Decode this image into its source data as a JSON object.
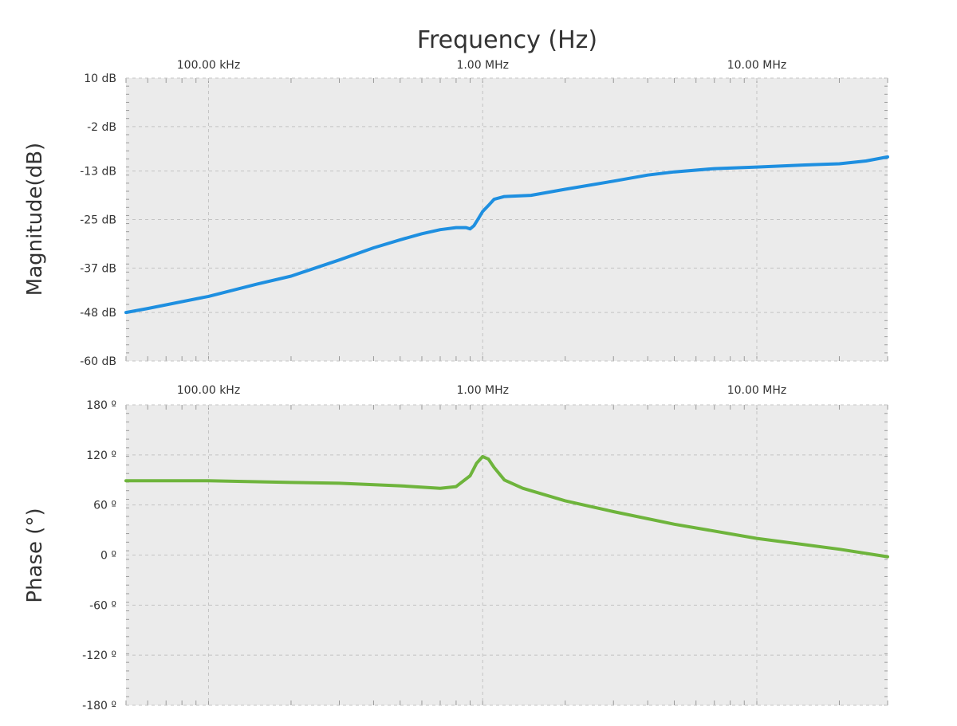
{
  "chart_data": [
    {
      "type": "line",
      "xlabel": "Frequency (Hz)",
      "ylabel": "Magnitude(dB)",
      "x_scale": "log",
      "xlim": [
        50000,
        30000000
      ],
      "ylim": [
        -60,
        10
      ],
      "x_ticks": [
        100000,
        1000000,
        10000000
      ],
      "x_tick_labels": [
        "100.00 kHz",
        "1.00 MHz",
        "10.00 MHz"
      ],
      "y_ticks": [
        10,
        -2,
        -13,
        -25,
        -37,
        -48,
        -60
      ],
      "y_tick_labels": [
        "10 dB",
        "-2 dB",
        "-13 dB",
        "-25 dB",
        "-37 dB",
        "-48 dB",
        "-60 dB"
      ],
      "grid": true,
      "colors": {
        "line": "#1e8fe0",
        "plot_bg": "#ebebeb",
        "grid": "#c4c4c4"
      },
      "series": [
        {
          "x": [
            50000,
            60000,
            100000,
            150000,
            200000,
            300000,
            400000,
            500000,
            600000,
            700000,
            800000,
            870000,
            900000,
            930000,
            960000,
            1000000,
            1050000,
            1100000,
            1200000,
            1500000,
            2000000,
            3000000,
            4000000,
            5000000,
            7000000,
            10000000,
            15000000,
            20000000,
            25000000,
            30000000
          ],
          "y": [
            -48,
            -47,
            -44,
            -41,
            -39,
            -35,
            -32,
            -30,
            -28.5,
            -27.5,
            -27,
            -27,
            -27.3,
            -26.5,
            -25,
            -23,
            -21.5,
            -20,
            -19.3,
            -19,
            -17.5,
            -15.5,
            -14,
            -13.2,
            -12.4,
            -12,
            -11.5,
            -11.2,
            -10.5,
            -9.5
          ]
        }
      ]
    },
    {
      "type": "line",
      "xlabel": "",
      "ylabel": "Phase (°)",
      "x_scale": "log",
      "xlim": [
        50000,
        30000000
      ],
      "ylim": [
        -180,
        180
      ],
      "x_ticks": [
        100000,
        1000000,
        10000000
      ],
      "x_tick_labels": [
        "100.00 kHz",
        "1.00 MHz",
        "10.00 MHz"
      ],
      "y_ticks": [
        180,
        120,
        60,
        0,
        -60,
        -120,
        -180
      ],
      "y_tick_labels": [
        "180 º",
        "120 º",
        "60 º",
        "0 º",
        "-60 º",
        "-120 º",
        "-180 º"
      ],
      "grid": true,
      "colors": {
        "line": "#6eb43c",
        "plot_bg": "#ebebeb",
        "grid": "#c4c4c4"
      },
      "series": [
        {
          "x": [
            50000,
            100000,
            200000,
            300000,
            500000,
            700000,
            800000,
            900000,
            950000,
            1000000,
            1050000,
            1100000,
            1200000,
            1400000,
            2000000,
            3000000,
            5000000,
            10000000,
            20000000,
            30000000
          ],
          "y": [
            89,
            89,
            87,
            86,
            83,
            80,
            82,
            95,
            110,
            118,
            115,
            105,
            90,
            80,
            65,
            52,
            37,
            20,
            7,
            -2
          ]
        }
      ]
    }
  ]
}
